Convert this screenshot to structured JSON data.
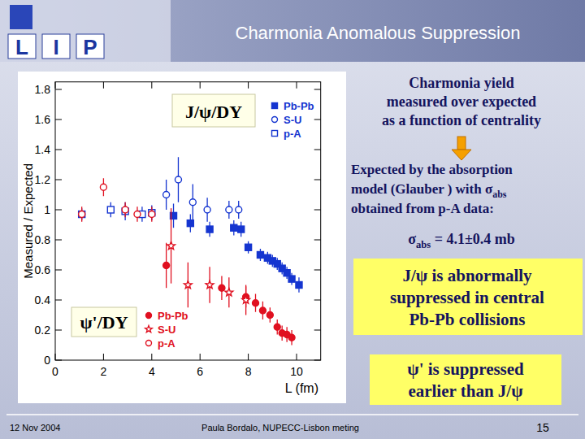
{
  "chart_data": {
    "type": "scatter",
    "y_label": "Measured / Expected",
    "x_label": "L (fm)",
    "xlim": [
      0,
      11
    ],
    "xticks": [
      0,
      2,
      4,
      6,
      8,
      10
    ],
    "ylim": [
      0,
      1.85
    ],
    "yticks": [
      0,
      0.2,
      0.4,
      0.6,
      0.8,
      1,
      1.2,
      1.4,
      1.6,
      1.8
    ],
    "grid": false,
    "series": [
      {
        "name": "Pb-Pb",
        "group": "J/ψ/DY",
        "color": "#1535d0",
        "marker": "square_filled",
        "x": [
          4.9,
          5.6,
          6.4,
          7.4,
          7.7,
          8.0,
          8.5,
          8.8,
          9.0,
          9.2,
          9.4,
          9.6,
          9.8,
          10.1
        ],
        "values": [
          0.96,
          0.91,
          0.87,
          0.88,
          0.87,
          0.75,
          0.7,
          0.68,
          0.66,
          0.64,
          0.61,
          0.58,
          0.54,
          0.5
        ],
        "errors": [
          0.08,
          0.06,
          0.05,
          0.05,
          0.05,
          0.04,
          0.04,
          0.04,
          0.04,
          0.04,
          0.04,
          0.04,
          0.04,
          0.05
        ]
      },
      {
        "name": "S-U",
        "group": "J/ψ/DY",
        "color": "#1535d0",
        "marker": "circle_open",
        "x": [
          4.6,
          5.1,
          5.7,
          6.3,
          7.2,
          7.6
        ],
        "values": [
          1.1,
          1.2,
          1.05,
          1.0,
          1.0,
          1.0
        ],
        "errors": [
          0.1,
          0.15,
          0.12,
          0.08,
          0.06,
          0.06
        ]
      },
      {
        "name": "p-A",
        "group": "J/ψ/DY",
        "color": "#1535d0",
        "marker": "square_open",
        "x": [
          1.1,
          2.3,
          2.9,
          3.6,
          4.0
        ],
        "values": [
          0.97,
          1.0,
          0.99,
          0.97,
          0.98
        ],
        "errors": [
          0.04,
          0.05,
          0.06,
          0.05,
          0.05
        ]
      },
      {
        "name": "Pb-Pb",
        "group": "ψ'/DY",
        "color": "#e01020",
        "marker": "circle_filled",
        "x": [
          4.6,
          6.9,
          7.9,
          8.3,
          8.6,
          8.9,
          9.2,
          9.4,
          9.6,
          9.8
        ],
        "values": [
          0.63,
          0.48,
          0.42,
          0.38,
          0.33,
          0.3,
          0.22,
          0.18,
          0.17,
          0.15
        ],
        "errors": [
          0.15,
          0.08,
          0.07,
          0.06,
          0.06,
          0.05,
          0.05,
          0.05,
          0.05,
          0.05
        ]
      },
      {
        "name": "S-U",
        "group": "ψ'/DY",
        "color": "#e01020",
        "marker": "star",
        "x": [
          4.8,
          5.5,
          6.4,
          7.2,
          7.9
        ],
        "values": [
          0.76,
          0.5,
          0.5,
          0.45,
          0.4
        ],
        "errors": [
          0.25,
          0.15,
          0.12,
          0.1,
          0.1
        ]
      },
      {
        "name": "p-A",
        "group": "ψ'/DY",
        "color": "#e01020",
        "marker": "circle_open",
        "x": [
          1.1,
          2.0,
          2.9,
          3.4,
          4.0
        ],
        "values": [
          0.97,
          1.15,
          1.0,
          0.97,
          0.97
        ],
        "errors": [
          0.05,
          0.06,
          0.05,
          0.05,
          0.05
        ]
      }
    ]
  },
  "slide": {
    "title": "Charmonia  Anomalous Suppression",
    "logo": [
      "L",
      "I",
      "P"
    ],
    "note_yield": [
      "Charmonia yield",
      "measured over expected",
      "as a function of centrality"
    ],
    "note_expected": [
      [
        "Expected by the absorption"
      ],
      [
        "model (Glauber ) with σ",
        {
          "sub": "abs"
        }
      ],
      [
        "obtained from p-A data:"
      ]
    ],
    "sigma": [
      "σ",
      {
        "sub": "abs"
      },
      " = 4.1±0.4 mb"
    ],
    "box_jpsi": [
      "J/ψ  is  abnormally",
      "suppressed in central",
      "Pb-Pb collisions"
    ],
    "box_psi": [
      "ψ' is suppressed",
      "earlier than J/ψ"
    ],
    "footer_date": "12 Nov 2004",
    "footer_author": "Paula Bordalo,  NUPECC-Lisbon meting",
    "page_number": "15"
  }
}
